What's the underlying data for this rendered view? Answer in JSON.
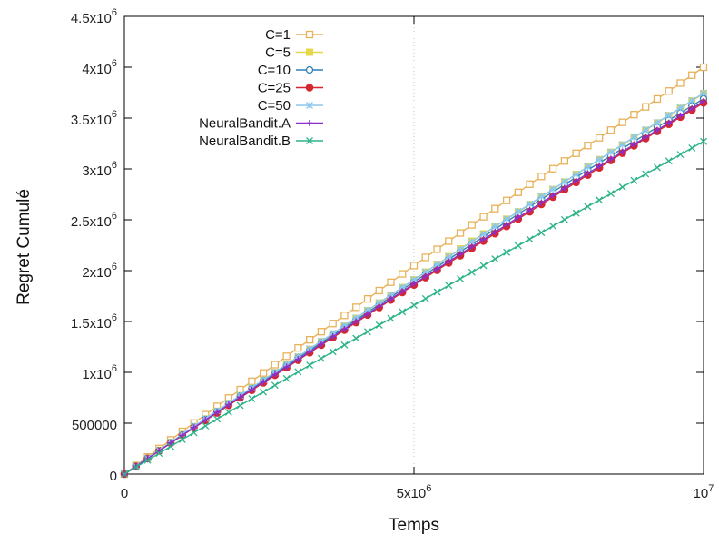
{
  "chart_data": {
    "type": "line",
    "title": "",
    "xlabel": "Temps",
    "ylabel": "Regret Cumulé",
    "xlim": [
      0,
      10000000
    ],
    "ylim": [
      0,
      4500000
    ],
    "grid": true,
    "legend_position": "top-left",
    "x_ticks": [
      {
        "value": 0,
        "base": "0",
        "exp": ""
      },
      {
        "value": 5000000,
        "base": "5x10",
        "exp": "6"
      },
      {
        "value": 10000000,
        "base": "10",
        "exp": "7"
      }
    ],
    "y_ticks": [
      {
        "value": 0,
        "base": "0",
        "exp": ""
      },
      {
        "value": 500000,
        "base": "500000",
        "exp": ""
      },
      {
        "value": 1000000,
        "base": "1x10",
        "exp": "6"
      },
      {
        "value": 1500000,
        "base": "1.5x10",
        "exp": "6"
      },
      {
        "value": 2000000,
        "base": "2x10",
        "exp": "6"
      },
      {
        "value": 2500000,
        "base": "2.5x10",
        "exp": "6"
      },
      {
        "value": 3000000,
        "base": "3x10",
        "exp": "6"
      },
      {
        "value": 3500000,
        "base": "3.5x10",
        "exp": "6"
      },
      {
        "value": 4000000,
        "base": "4x10",
        "exp": "6"
      },
      {
        "value": 4500000,
        "base": "4.5x10",
        "exp": "6"
      }
    ],
    "x": [
      0,
      1000000,
      2000000,
      3000000,
      4000000,
      5000000,
      6000000,
      7000000,
      8000000,
      9000000,
      10000000
    ],
    "series": [
      {
        "name": "C=1",
        "color": "#e8b25a",
        "marker": "open-square",
        "values": [
          0,
          420000,
          830000,
          1240000,
          1640000,
          2050000,
          2450000,
          2850000,
          3230000,
          3610000,
          4000000
        ]
      },
      {
        "name": "C=5",
        "color": "#e6d84a",
        "marker": "filled-square",
        "values": [
          0,
          390000,
          770000,
          1150000,
          1530000,
          1910000,
          2290000,
          2650000,
          3020000,
          3380000,
          3740000
        ]
      },
      {
        "name": "C=10",
        "color": "#2f7fb8",
        "marker": "open-circle",
        "values": [
          0,
          385000,
          765000,
          1140000,
          1515000,
          1890000,
          2260000,
          2630000,
          2990000,
          3340000,
          3690000
        ]
      },
      {
        "name": "C=25",
        "color": "#d6272e",
        "marker": "filled-circle",
        "values": [
          0,
          380000,
          750000,
          1120000,
          1490000,
          1860000,
          2220000,
          2580000,
          2940000,
          3300000,
          3650000
        ]
      },
      {
        "name": "C=50",
        "color": "#8cc7ee",
        "marker": "asterisk",
        "values": [
          0,
          392000,
          775000,
          1155000,
          1535000,
          1912000,
          2285000,
          2655000,
          3020000,
          3385000,
          3745000
        ]
      },
      {
        "name": "NeuralBandit.A",
        "color": "#8b2fc9",
        "marker": "plus",
        "values": [
          0,
          382000,
          757000,
          1128000,
          1500000,
          1870000,
          2235000,
          2595000,
          2955000,
          3312000,
          3665000
        ]
      },
      {
        "name": "NeuralBandit.B",
        "color": "#2db38a",
        "marker": "cross",
        "values": [
          0,
          340000,
          675000,
          1005000,
          1335000,
          1660000,
          1985000,
          2310000,
          2630000,
          2950000,
          3270000
        ]
      }
    ]
  }
}
